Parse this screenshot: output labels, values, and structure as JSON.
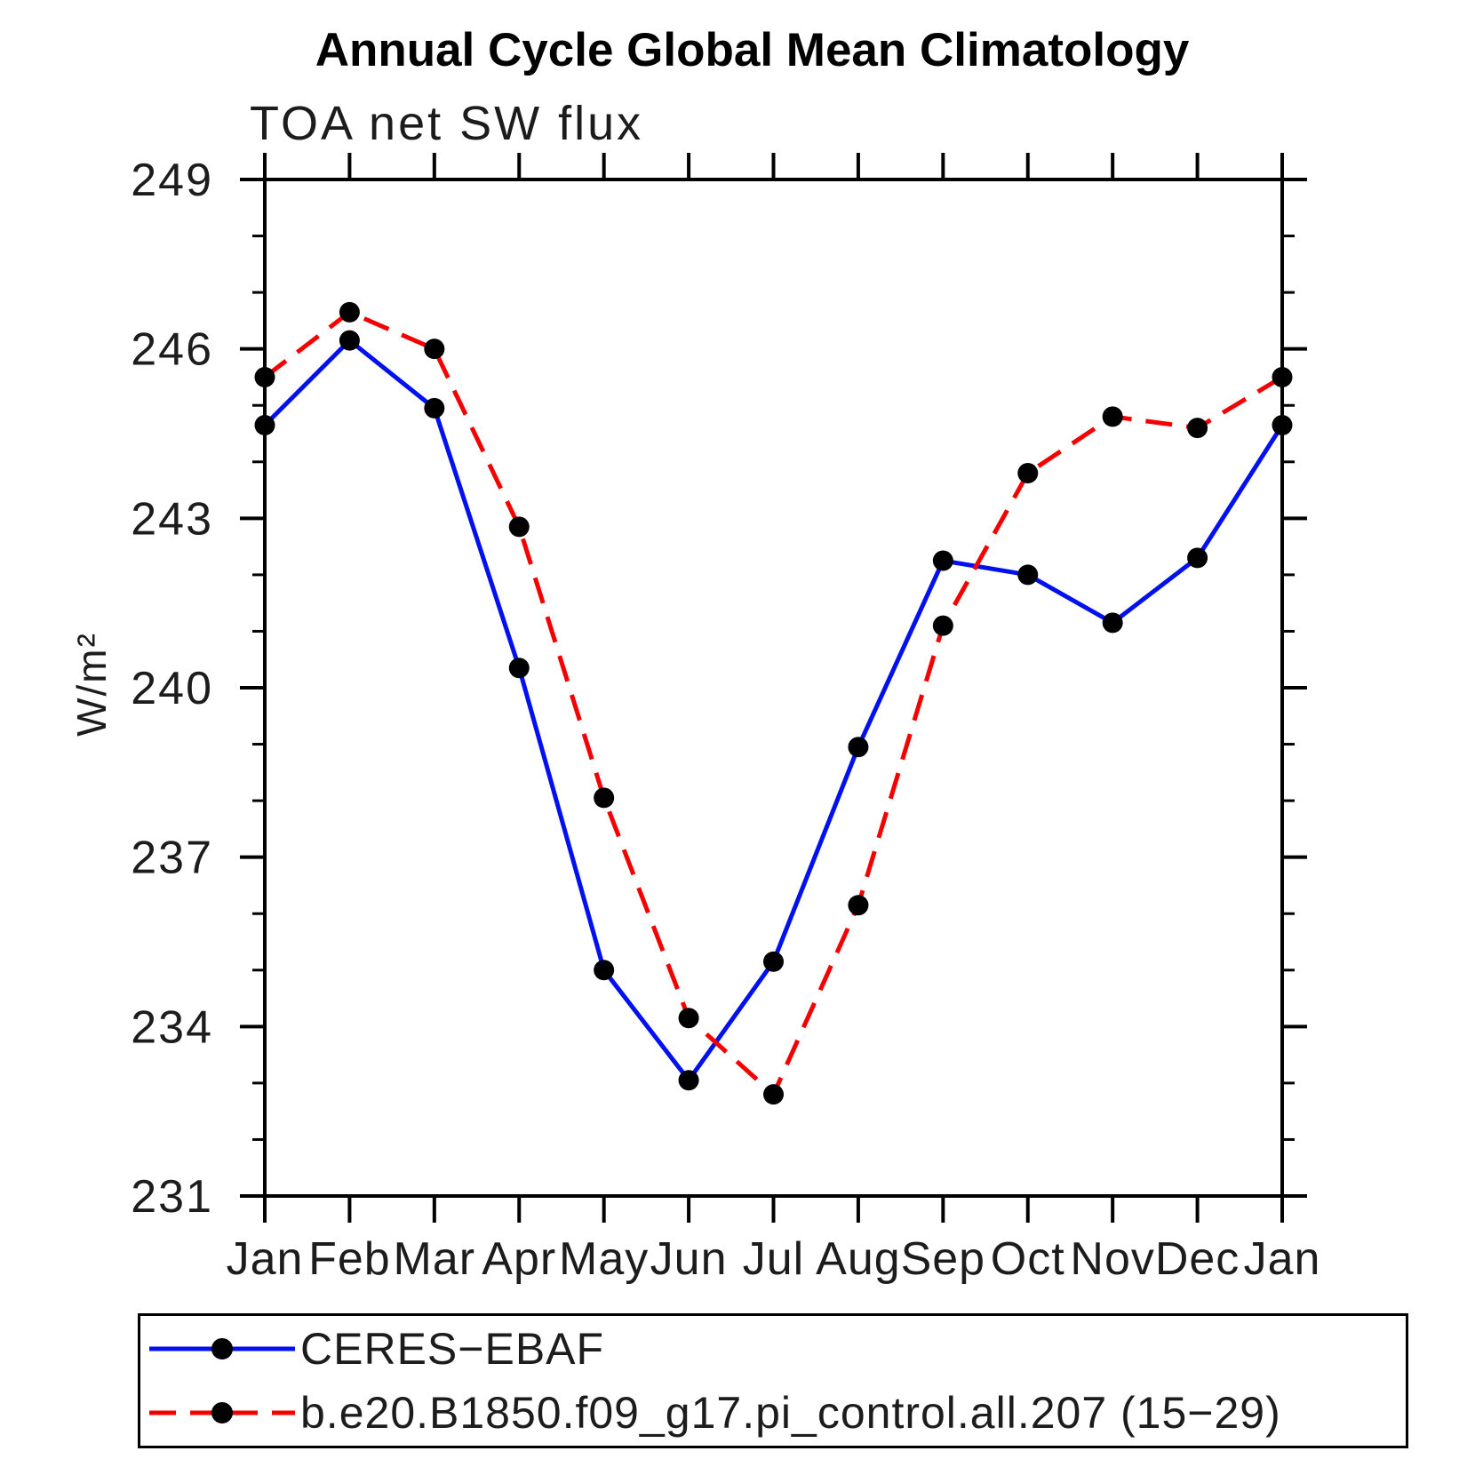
{
  "title": "Annual Cycle Global Mean Climatology",
  "subtitle": "TOA net SW flux",
  "chart_data": {
    "type": "line",
    "title": "Annual Cycle Global Mean Climatology",
    "subtitle": "TOA net SW flux",
    "xlabel": "",
    "ylabel": "W/m²",
    "categories": [
      "Jan",
      "Feb",
      "Mar",
      "Apr",
      "May",
      "Jun",
      "Jul",
      "Aug",
      "Sep",
      "Oct",
      "Nov",
      "Dec",
      "Jan"
    ],
    "ylim": [
      231,
      249
    ],
    "ytick_major": [
      231,
      234,
      237,
      240,
      243,
      246,
      249
    ],
    "ytick_minor_step": 1,
    "grid": false,
    "legend_position": "bottom-left-box",
    "marker": "circle",
    "marker_color": "#000000",
    "series": [
      {
        "name": "CERES−EBAF",
        "color": "#0010ee",
        "style": "solid",
        "values": [
          244.65,
          246.15,
          244.95,
          240.35,
          235.0,
          233.05,
          235.15,
          238.95,
          242.25,
          242.0,
          241.15,
          242.3,
          244.65
        ]
      },
      {
        "name": "b.e20.B1850.f09_g17.pi_control.all.207 (15−29)",
        "color": "#f50000",
        "style": "dashed",
        "values": [
          245.5,
          246.65,
          246.0,
          242.85,
          238.05,
          234.15,
          232.8,
          236.15,
          241.1,
          243.8,
          244.8,
          244.6,
          245.5
        ]
      }
    ]
  }
}
